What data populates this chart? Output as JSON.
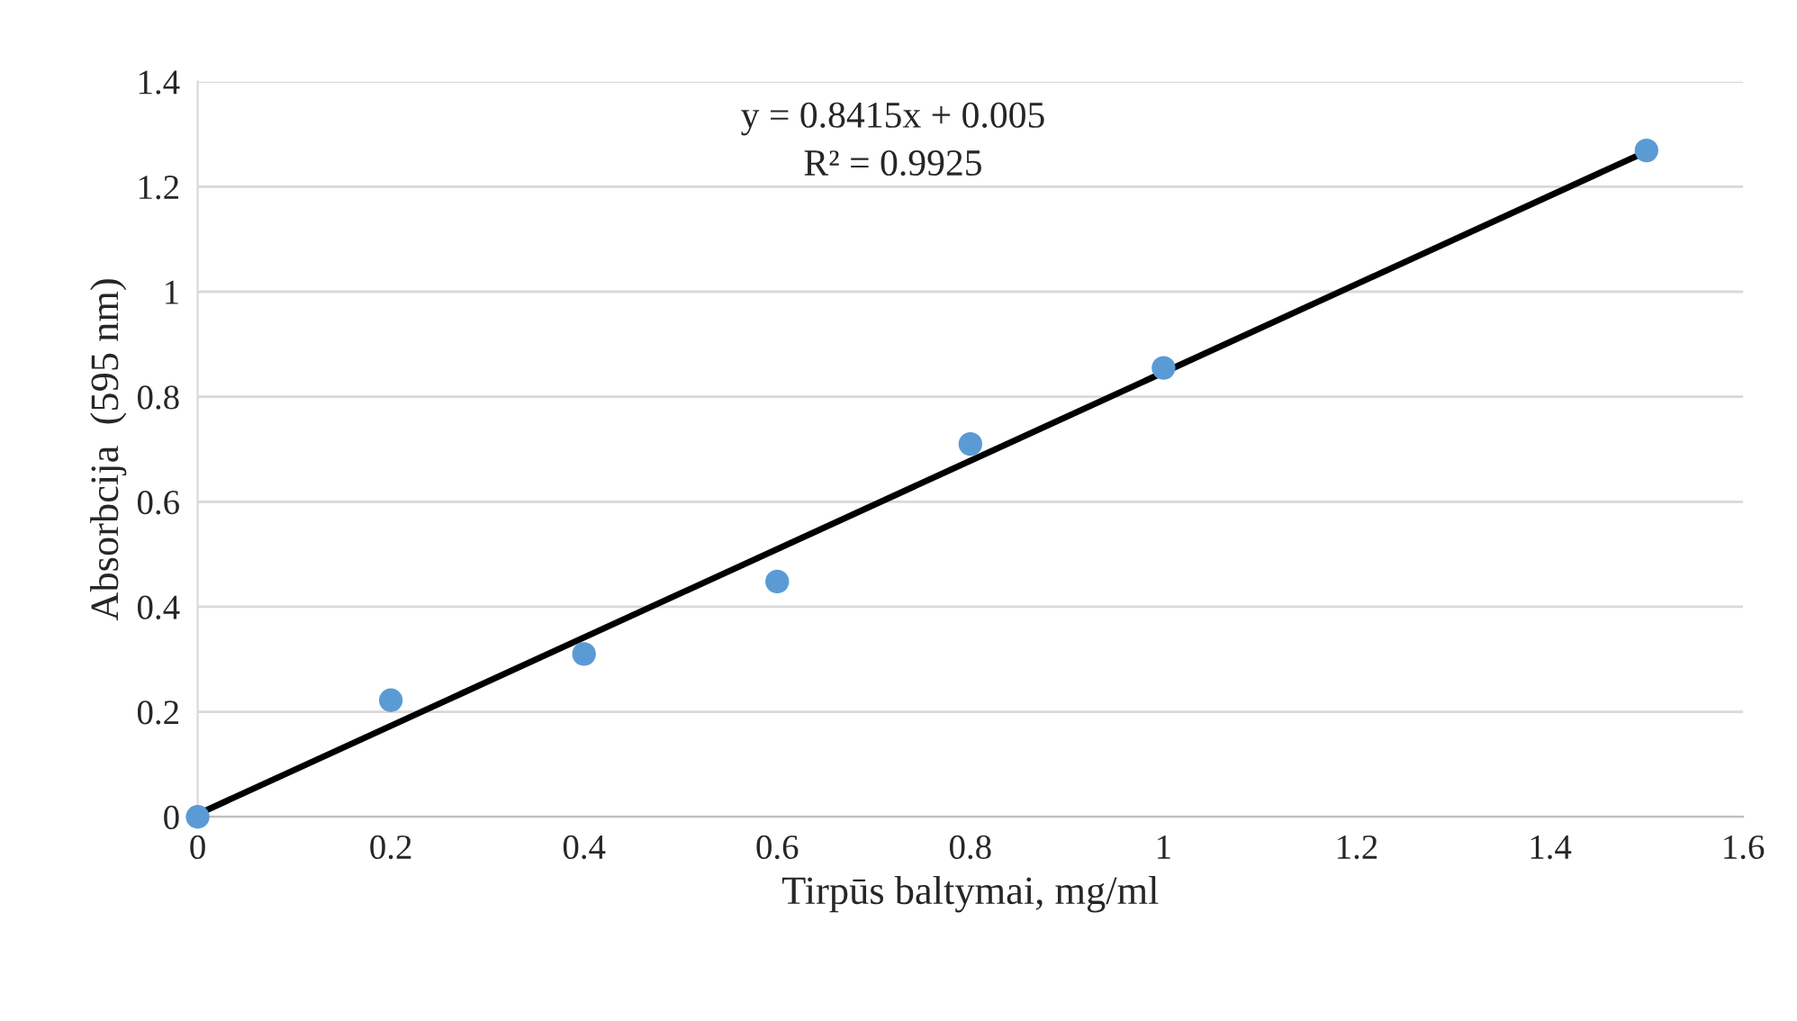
{
  "chart_data": {
    "type": "scatter",
    "xlabel": "Tirpūs baltymai, mg/ml",
    "ylabel": "Absorbcija  (595 nm)",
    "series": [
      {
        "color": "#5b9bd5",
        "marker": "circle",
        "x": [
          0,
          0.2,
          0.4,
          0.6,
          0.8,
          1.0,
          1.5
        ],
        "values": [
          0,
          0.222,
          0.31,
          0.448,
          0.71,
          0.855,
          1.269
        ]
      },
      {
        "type": "line",
        "marker": "none",
        "color": "#000000",
        "x": [
          0,
          1.5
        ],
        "values": [
          0.005,
          1.267
        ]
      }
    ],
    "annotations": [
      "y = 0.8415x + 0.005",
      "R² = 0.9925"
    ],
    "xlim": [
      0,
      1.6
    ],
    "xticks": [
      0,
      0.2,
      0.4,
      0.6,
      0.8,
      1,
      1.2,
      1.4,
      1.6
    ],
    "ylim": [
      0,
      1.4
    ],
    "yticks": [
      0,
      0.2,
      0.4,
      0.6,
      0.8,
      1,
      1.2,
      1.4
    ],
    "grid": "y"
  }
}
